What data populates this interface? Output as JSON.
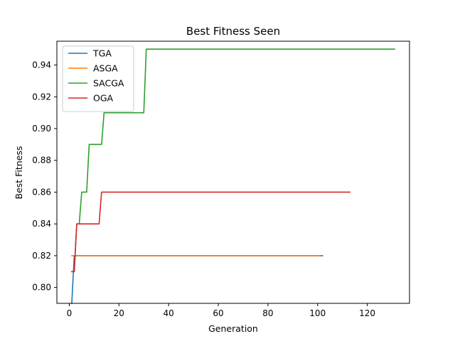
{
  "chart_data": {
    "type": "line",
    "title": "Best Fitness Seen",
    "xlabel": "Generation",
    "ylabel": "Best Fitness",
    "xlim": [
      -5,
      137
    ],
    "ylim": [
      0.79,
      0.955
    ],
    "xticks": [
      0,
      20,
      40,
      60,
      80,
      100,
      120
    ],
    "yticks": [
      0.8,
      0.82,
      0.84,
      0.86,
      0.88,
      0.9,
      0.92,
      0.94
    ],
    "xtick_labels": [
      "0",
      "20",
      "40",
      "60",
      "80",
      "100",
      "120"
    ],
    "ytick_labels": [
      "0.80",
      "0.82",
      "0.84",
      "0.86",
      "0.88",
      "0.90",
      "0.92",
      "0.94"
    ],
    "grid": false,
    "legend_position": "top-left",
    "series": [
      {
        "name": "TGA",
        "color": "#1f77b4",
        "x": [
          1,
          2,
          102
        ],
        "y": [
          0.79,
          0.82,
          0.82
        ]
      },
      {
        "name": "ASGA",
        "color": "#ff7f0e",
        "x": [
          1,
          101
        ],
        "y": [
          0.82,
          0.82
        ]
      },
      {
        "name": "SACGA",
        "color": "#2ca02c",
        "x": [
          1,
          2,
          3,
          4,
          5,
          6,
          7,
          8,
          9,
          10,
          11,
          12,
          13,
          14,
          15,
          30,
          31,
          131
        ],
        "y": [
          0.81,
          0.81,
          0.84,
          0.84,
          0.86,
          0.86,
          0.86,
          0.89,
          0.89,
          0.89,
          0.89,
          0.89,
          0.89,
          0.91,
          0.91,
          0.91,
          0.95,
          0.95
        ]
      },
      {
        "name": "OGA",
        "color": "#d62728",
        "x": [
          1,
          2,
          3,
          12,
          13,
          113
        ],
        "y": [
          0.81,
          0.81,
          0.84,
          0.84,
          0.86,
          0.86
        ]
      }
    ]
  }
}
